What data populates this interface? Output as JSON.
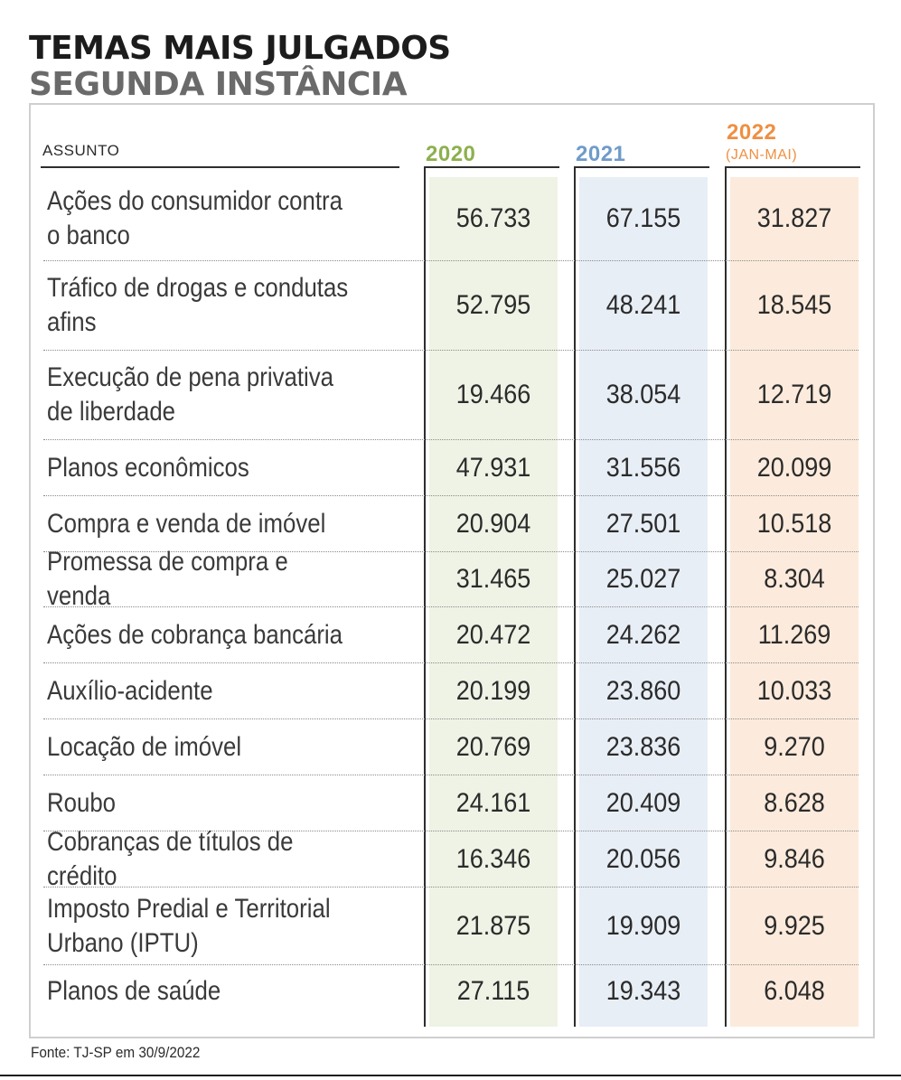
{
  "title": "TEMAS MAIS JULGADOS",
  "subtitle": "SEGUNDA INSTÂNCIA",
  "colors": {
    "y2020": "#8db04e",
    "y2021": "#6f9bc9",
    "y2022": "#ef8f42"
  },
  "chart_data": {
    "type": "table",
    "title": "TEMAS MAIS JULGADOS",
    "subtitle": "SEGUNDA INSTÂNCIA",
    "columns": {
      "subject": "ASSUNTO",
      "y2020": "2020",
      "y2021": "2021",
      "y2022": "2022",
      "y2022_note": "(JAN-MAI)"
    },
    "rows": [
      {
        "subject": "Ações do consumidor contra\no banco",
        "y2020": "56.733",
        "y2021": "67.155",
        "y2022": "31.827"
      },
      {
        "subject": "Tráfico de drogas e condutas\nafins",
        "y2020": "52.795",
        "y2021": "48.241",
        "y2022": "18.545"
      },
      {
        "subject": "Execução de pena privativa\nde liberdade",
        "y2020": "19.466",
        "y2021": "38.054",
        "y2022": "12.719"
      },
      {
        "subject": "Planos econômicos",
        "y2020": "47.931",
        "y2021": "31.556",
        "y2022": "20.099"
      },
      {
        "subject": "Compra e venda de imóvel",
        "y2020": "20.904",
        "y2021": "27.501",
        "y2022": "10.518"
      },
      {
        "subject": "Promessa de compra e venda",
        "y2020": "31.465",
        "y2021": "25.027",
        "y2022": "8.304"
      },
      {
        "subject": "Ações de cobrança bancária",
        "y2020": "20.472",
        "y2021": "24.262",
        "y2022": "11.269"
      },
      {
        "subject": "Auxílio-acidente",
        "y2020": "20.199",
        "y2021": "23.860",
        "y2022": "10.033"
      },
      {
        "subject": "Locação de imóvel",
        "y2020": "20.769",
        "y2021": "23.836",
        "y2022": "9.270"
      },
      {
        "subject": "Roubo",
        "y2020": "24.161",
        "y2021": "20.409",
        "y2022": "8.628"
      },
      {
        "subject": "Cobranças de títulos de crédito",
        "y2020": "16.346",
        "y2021": "20.056",
        "y2022": "9.846"
      },
      {
        "subject": "Imposto Predial e Territorial\nUrbano (IPTU)",
        "y2020": "21.875",
        "y2021": "19.909",
        "y2022": "9.925"
      },
      {
        "subject": "Planos de saúde",
        "y2020": "27.115",
        "y2021": "19.343",
        "y2022": "6.048"
      }
    ],
    "source": "Fonte: TJ-SP em 30/9/2022"
  }
}
